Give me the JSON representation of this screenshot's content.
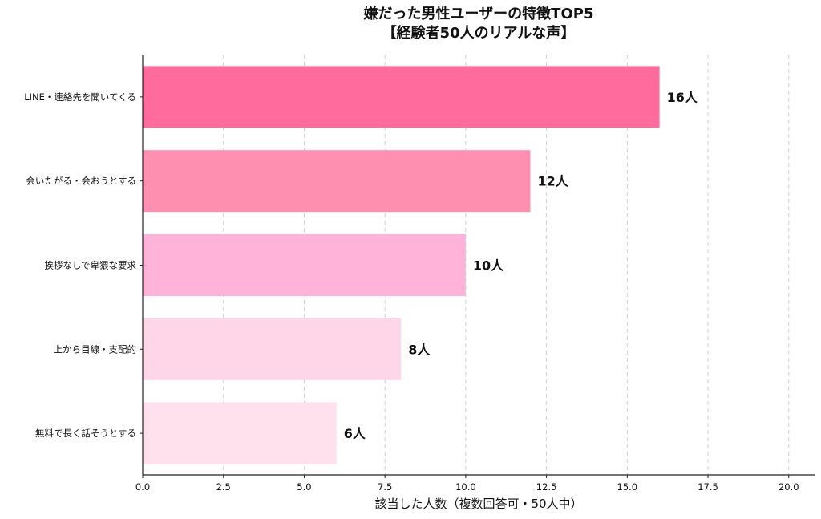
{
  "chart_data": {
    "type": "bar",
    "orientation": "horizontal",
    "title": "嫌だった男性ユーザーの特徴TOP5",
    "subtitle": "【経験者50人のリアルな声】",
    "xlabel": "該当した人数（複数回答可・50人中）",
    "ylabel": "",
    "categories": [
      "LINE・連絡先を聞いてくる",
      "会いたがる・会おうとする",
      "挨拶なしで卑猥な要求",
      "上から目線・支配的",
      "無料で長く話そうとする"
    ],
    "values": [
      16,
      12,
      10,
      8,
      6
    ],
    "data_labels": [
      "16人",
      "12人",
      "10人",
      "8人",
      "6人"
    ],
    "colors": [
      "#ff6b9d",
      "#ff8fb1",
      "#ffb3d9",
      "#ffd6e8",
      "#ffe0ec"
    ],
    "xlim": [
      0,
      20.8
    ],
    "xticks": [
      "0.0",
      "2.5",
      "5.0",
      "7.5",
      "10.0",
      "12.5",
      "15.0",
      "17.5",
      "20.0"
    ],
    "xtick_values": [
      0,
      2.5,
      5,
      7.5,
      10,
      12.5,
      15,
      17.5,
      20
    ],
    "grid": "vertical dashed"
  }
}
